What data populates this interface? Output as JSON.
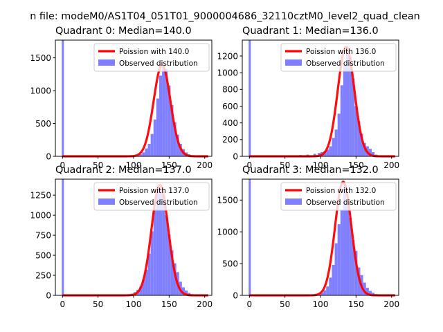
{
  "figure_title": "n file: modeM0/AS1T04_051T01_9000004686_32110cztM0_level2_quad_clean",
  "colors": {
    "fit_line": "#ff0000",
    "bars": "#8080ff",
    "axis": "#000000"
  },
  "legend_labels": {
    "observed": "Observed distribution"
  },
  "chart_data": [
    {
      "type": "bar",
      "title": "Quadrant 0: Median=140.0",
      "legend": {
        "fit": "Poission with 140.0",
        "observed": "Observed distribution",
        "position": "top-right"
      },
      "xlim": [
        -10,
        210
      ],
      "ylim": [
        0,
        1770
      ],
      "xticks": [
        0,
        50,
        100,
        150,
        200
      ],
      "yticks": [
        0,
        500,
        1000,
        1500
      ],
      "mu": 140,
      "fit_peak": 1390,
      "spike": {
        "x": 0,
        "height": 1770
      },
      "bins": [
        [
          104,
          10
        ],
        [
          108,
          30
        ],
        [
          112,
          60
        ],
        [
          116,
          120
        ],
        [
          120,
          190
        ],
        [
          124,
          340
        ],
        [
          128,
          560
        ],
        [
          132,
          880
        ],
        [
          136,
          1230
        ],
        [
          140,
          1400
        ],
        [
          144,
          1330
        ],
        [
          148,
          1080
        ],
        [
          152,
          780
        ],
        [
          156,
          520
        ],
        [
          160,
          330
        ],
        [
          164,
          190
        ],
        [
          168,
          110
        ],
        [
          172,
          60
        ],
        [
          176,
          30
        ],
        [
          180,
          15
        ],
        [
          184,
          6
        ]
      ]
    },
    {
      "type": "bar",
      "title": "Quadrant 1: Median=136.0",
      "legend": {
        "fit": "Poission with 136.0",
        "observed": "Observed distribution",
        "position": "top-right"
      },
      "xlim": [
        -10,
        210
      ],
      "ylim": [
        0,
        1390
      ],
      "xticks": [
        0,
        50,
        100,
        150,
        200
      ],
      "yticks": [
        0,
        200,
        400,
        600,
        800,
        1000,
        1200
      ],
      "mu": 136,
      "fit_peak": 1310,
      "spike": {
        "x": 0,
        "height": 1390
      },
      "bins": [
        [
          40,
          5
        ],
        [
          50,
          8
        ],
        [
          60,
          10
        ],
        [
          70,
          15
        ],
        [
          80,
          20
        ],
        [
          90,
          30
        ],
        [
          96,
          40
        ],
        [
          100,
          50
        ],
        [
          104,
          60
        ],
        [
          108,
          80
        ],
        [
          112,
          120
        ],
        [
          116,
          220
        ],
        [
          120,
          320
        ],
        [
          124,
          510
        ],
        [
          128,
          850
        ],
        [
          132,
          1090
        ],
        [
          136,
          1280
        ],
        [
          140,
          1190
        ],
        [
          144,
          930
        ],
        [
          148,
          600
        ],
        [
          152,
          420
        ],
        [
          156,
          270
        ],
        [
          160,
          160
        ],
        [
          164,
          120
        ],
        [
          168,
          90
        ],
        [
          172,
          50
        ],
        [
          176,
          20
        ],
        [
          180,
          10
        ]
      ]
    },
    {
      "type": "bar",
      "title": "Quadrant 2: Median=137.0",
      "legend": {
        "fit": "Poission with 137.0",
        "observed": "Observed distribution",
        "position": "top-right"
      },
      "xlim": [
        -10,
        210
      ],
      "ylim": [
        0,
        1450
      ],
      "xticks": [
        0,
        50,
        100,
        150,
        200
      ],
      "yticks": [
        0,
        250,
        500,
        750,
        1000,
        1250
      ],
      "mu": 137,
      "fit_peak": 1380,
      "spike": {
        "x": 0,
        "height": 1450
      },
      "bins": [
        [
          80,
          5
        ],
        [
          90,
          10
        ],
        [
          96,
          20
        ],
        [
          100,
          40
        ],
        [
          104,
          70
        ],
        [
          108,
          110
        ],
        [
          112,
          200
        ],
        [
          116,
          320
        ],
        [
          120,
          520
        ],
        [
          124,
          800
        ],
        [
          128,
          1080
        ],
        [
          132,
          1300
        ],
        [
          136,
          1350
        ],
        [
          140,
          1250
        ],
        [
          144,
          1000
        ],
        [
          148,
          760
        ],
        [
          152,
          560
        ],
        [
          156,
          400
        ],
        [
          160,
          290
        ],
        [
          164,
          170
        ],
        [
          168,
          100
        ],
        [
          172,
          60
        ],
        [
          176,
          30
        ],
        [
          180,
          15
        ],
        [
          184,
          6
        ]
      ]
    },
    {
      "type": "bar",
      "title": "Quadrant 3: Median=132.0",
      "legend": {
        "fit": "Poission with 132.0",
        "observed": "Observed distribution",
        "position": "top-right"
      },
      "xlim": [
        -10,
        210
      ],
      "ylim": [
        0,
        1830
      ],
      "xticks": [
        0,
        50,
        100,
        150,
        200
      ],
      "yticks": [
        0,
        500,
        1000,
        1500
      ],
      "mu": 132,
      "fit_peak": 1790,
      "spike": {
        "x": 0,
        "height": 1830
      },
      "bins": [
        [
          84,
          5
        ],
        [
          94,
          15
        ],
        [
          100,
          40
        ],
        [
          104,
          80
        ],
        [
          108,
          140
        ],
        [
          112,
          280
        ],
        [
          116,
          480
        ],
        [
          120,
          820
        ],
        [
          124,
          1120
        ],
        [
          128,
          1350
        ],
        [
          132,
          1720
        ],
        [
          136,
          1500
        ],
        [
          140,
          1220
        ],
        [
          144,
          870
        ],
        [
          148,
          700
        ],
        [
          152,
          440
        ],
        [
          156,
          320
        ],
        [
          160,
          200
        ],
        [
          164,
          120
        ],
        [
          168,
          70
        ],
        [
          172,
          40
        ],
        [
          176,
          20
        ],
        [
          180,
          10
        ]
      ]
    }
  ]
}
